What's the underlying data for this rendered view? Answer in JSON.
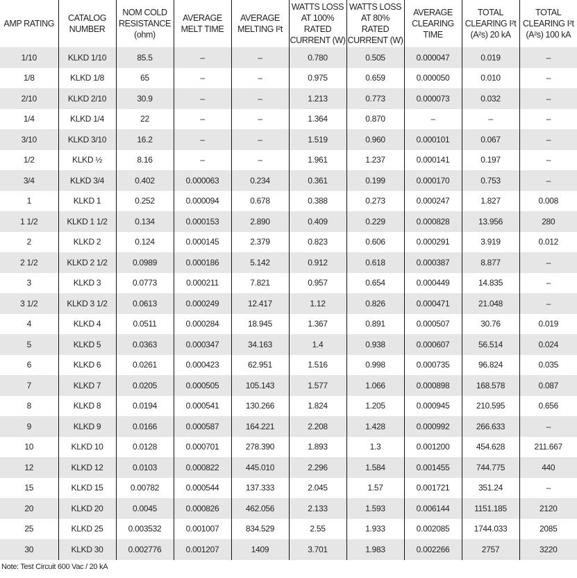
{
  "table": {
    "headers": [
      "AMP RATING",
      "CATALOG NUMBER",
      "NOM COLD RESISTANCE (ohm)",
      "AVERAGE MELT TIME",
      "AVERAGE MELTING I²t",
      "WATTS LOSS AT 100% RATED CURRENT (W)",
      "WATTS LOSS AT 80% RATED CURRENT (W)",
      "AVERAGE CLEARING TIME",
      "TOTAL CLEARING I²t (A²s) 20 kA",
      "TOTAL CLEARING I²t (A²s) 100 kA"
    ],
    "rows": [
      [
        "1/10",
        "KLKD 1/10",
        "85.5",
        "–",
        "–",
        "0.780",
        "0.505",
        "0.000047",
        "0.019",
        "–"
      ],
      [
        "1/8",
        "KLKD 1/8",
        "65",
        "–",
        "–",
        "0.975",
        "0.659",
        "0.000050",
        "0.010",
        "–"
      ],
      [
        "2/10",
        "KLKD 2/10",
        "30.9",
        "–",
        "–",
        "1.213",
        "0.773",
        "0.000073",
        "0.032",
        "–"
      ],
      [
        "1/4",
        "KLKD 1/4",
        "22",
        "–",
        "–",
        "1.364",
        "0.870",
        "–",
        "–",
        "–"
      ],
      [
        "3/10",
        "KLKD 3/10",
        "16.2",
        "–",
        "–",
        "1.519",
        "0.960",
        "0.000101",
        "0.067",
        "–"
      ],
      [
        "1/2",
        "KLKD ½",
        "8.16",
        "–",
        "–",
        "1.961",
        "1.237",
        "0.000141",
        "0.197",
        "–"
      ],
      [
        "3/4",
        "KLKD 3/4",
        "0.402",
        "0.000063",
        "0.234",
        "0.361",
        "0.199",
        "0.000170",
        "0.753",
        "–"
      ],
      [
        "1",
        "KLKD 1",
        "0.252",
        "0.000094",
        "0.678",
        "0.388",
        "0.273",
        "0.000247",
        "1.827",
        "0.008"
      ],
      [
        "1 1/2",
        "KLKD 1 1/2",
        "0.134",
        "0.000153",
        "2.890",
        "0.409",
        "0.229",
        "0.000828",
        "13.956",
        "280"
      ],
      [
        "2",
        "KLKD 2",
        "0.124",
        "0.000145",
        "2.379",
        "0.823",
        "0.606",
        "0.000291",
        "3.919",
        "0.012"
      ],
      [
        "2 1/2",
        "KLKD 2 1/2",
        "0.0989",
        "0.000186",
        "5.142",
        "0.912",
        "0.618",
        "0.000387",
        "8.877",
        "–"
      ],
      [
        "3",
        "KLKD 3",
        "0.0773",
        "0.000211",
        "7.821",
        "0.957",
        "0.654",
        "0.000449",
        "14.835",
        "–"
      ],
      [
        "3 1/2",
        "KLKD 3 1/2",
        "0.0613",
        "0.000249",
        "12.417",
        "1.12",
        "0.826",
        "0.000471",
        "21.048",
        "–"
      ],
      [
        "4",
        "KLKD 4",
        "0.0511",
        "0.000284",
        "18.945",
        "1.367",
        "0.891",
        "0.000507",
        "30.76",
        "0.019"
      ],
      [
        "5",
        "KLKD 5",
        "0.0363",
        "0.000347",
        "34.163",
        "1.4",
        "0.938",
        "0.000607",
        "56.514",
        "0.024"
      ],
      [
        "6",
        "KLKD 6",
        "0.0261",
        "0.000423",
        "62.951",
        "1.516",
        "0.998",
        "0.000735",
        "96.824",
        "0.035"
      ],
      [
        "7",
        "KLKD 7",
        "0.0205",
        "0.000505",
        "105.143",
        "1.577",
        "1.066",
        "0.000898",
        "168.578",
        "0.087"
      ],
      [
        "8",
        "KLKD 8",
        "0.0194",
        "0.000541",
        "130.266",
        "1.824",
        "1.205",
        "0.000945",
        "210.595",
        "0.656"
      ],
      [
        "9",
        "KLKD 9",
        "0.0166",
        "0.000587",
        "164.221",
        "2.208",
        "1.428",
        "0.000992",
        "266.633",
        "–"
      ],
      [
        "10",
        "KLKD 10",
        "0.0128",
        "0.000701",
        "278.390",
        "1.893",
        "1.3",
        "0.001200",
        "454.628",
        "211.667"
      ],
      [
        "12",
        "KLKD 12",
        "0.0103",
        "0.000822",
        "445.010",
        "2.296",
        "1.584",
        "0.001455",
        "744.775",
        "440"
      ],
      [
        "15",
        "KLKD 15",
        "0.00782",
        "0.000544",
        "137.333",
        "2.045",
        "1.57",
        "0.001721",
        "351.24",
        "–"
      ],
      [
        "20",
        "KLKD 20",
        "0.0045",
        "0.000826",
        "462.056",
        "2.133",
        "1.593",
        "0.006144",
        "1151.185",
        "2120"
      ],
      [
        "25",
        "KLKD 25",
        "0.003532",
        "0.001007",
        "834.529",
        "2.55",
        "1.933",
        "0.002085",
        "1744.033",
        "2085"
      ],
      [
        "30",
        "KLKD 30",
        "0.002776",
        "0.001207",
        "1409",
        "3.701",
        "1.983",
        "0.002266",
        "2757",
        "3220"
      ]
    ]
  },
  "note": "Note: Test Circuit 600 Vac / 20 kA",
  "colors": {
    "shade": "#e6e6e6",
    "rule": "#111111"
  }
}
